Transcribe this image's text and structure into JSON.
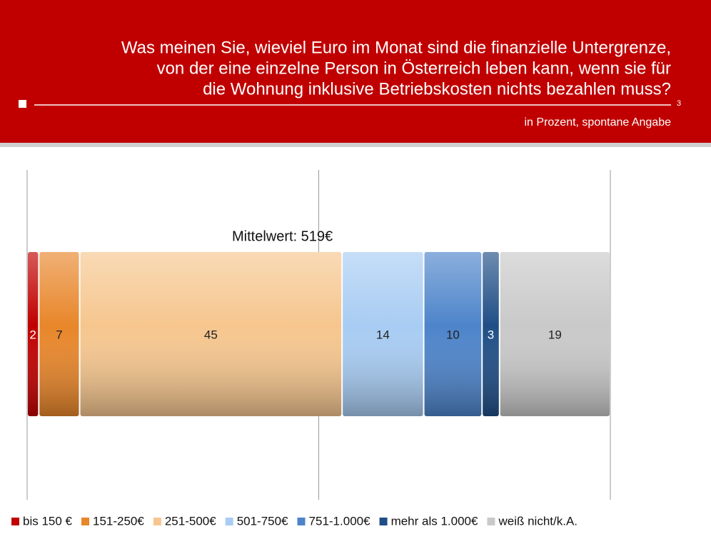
{
  "slide": {
    "page_number": "3"
  },
  "chart_data": {
    "type": "stacked_bar",
    "title": [
      "Was meinen Sie, wieviel Euro im Monat sind die finanzielle Untergrenze,",
      "von der eine einzelne Person in Österreich leben kann, wenn sie für",
      "die Wohnung inklusive Betriebskosten nichts bezahlen muss?"
    ],
    "subtitle": "in Prozent, spontane Angabe",
    "annotation": "Mittelwert: 519€",
    "xlim": [
      0,
      100
    ],
    "gridlines": [
      0,
      50,
      100
    ],
    "series": [
      {
        "name": "bis 150 €",
        "color": "#c00000",
        "values": [
          2
        ]
      },
      {
        "name": "151-250€",
        "color": "#e8862a",
        "values": [
          7
        ]
      },
      {
        "name": "251-500€",
        "color": "#f6c68e",
        "values": [
          45
        ]
      },
      {
        "name": "501-750€",
        "color": "#a8ccf3",
        "values": [
          14
        ]
      },
      {
        "name": "751-1.000€",
        "color": "#4d84ca",
        "values": [
          10
        ]
      },
      {
        "name": "mehr als 1.000€",
        "color": "#1f4e86",
        "values": [
          3
        ]
      },
      {
        "name": "weiß nicht/k.A.",
        "color": "#c9c9c9",
        "values": [
          19
        ]
      }
    ]
  }
}
